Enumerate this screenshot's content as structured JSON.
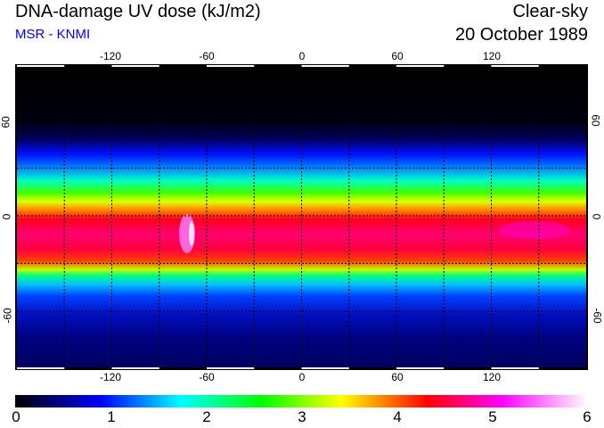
{
  "header": {
    "title": "DNA-damage UV dose (kJ/m2)",
    "source": "MSR - KNMI",
    "condition": "Clear-sky",
    "date": "20 October 1989"
  },
  "map": {
    "lon_labels": [
      "-120",
      "-60",
      "0",
      "60",
      "120"
    ],
    "lon_values": [
      -120,
      -60,
      0,
      60,
      120
    ],
    "lat_labels": [
      "60",
      "0",
      "-60"
    ],
    "lat_values": [
      60,
      0,
      -60
    ]
  },
  "colorbar": {
    "labels": [
      "0",
      "1",
      "2",
      "3",
      "4",
      "5",
      "6"
    ],
    "range": [
      0,
      6
    ],
    "colors": [
      "#000000",
      "#0000ff",
      "#00ffff",
      "#00ff00",
      "#ffff00",
      "#ff0000",
      "#ff00ff",
      "#ffffff"
    ]
  }
}
